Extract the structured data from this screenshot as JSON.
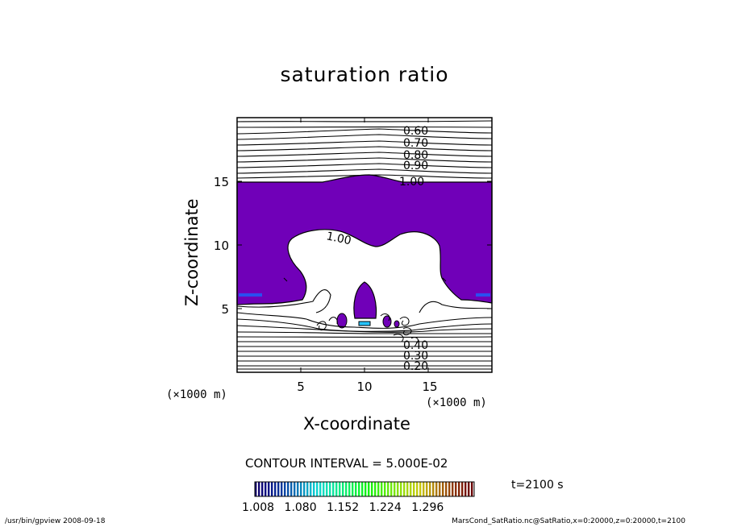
{
  "chart_data": {
    "type": "contour",
    "title": "saturation ratio",
    "xlabel": "X-coordinate",
    "ylabel": "Z-coordinate",
    "x_unit": "(×1000 m)",
    "z_unit": "(×1000 m)",
    "xlim": [
      0,
      20
    ],
    "ylim": [
      0,
      20
    ],
    "x_ticks": [
      "5",
      "10",
      "15"
    ],
    "y_ticks": [
      "5",
      "10",
      "15"
    ],
    "contour_labels_upper": [
      "0.60",
      "0.70",
      "0.80",
      "0.90",
      "1.00"
    ],
    "contour_label_center": "1.00",
    "contour_labels_lower": [
      "0.40",
      "0.30",
      "0.20"
    ],
    "contour_interval_text": "CONTOUR INTERVAL = 5.000E-02",
    "colorbar_ticks": [
      "1.008",
      "1.080",
      "1.152",
      "1.224",
      "1.296"
    ],
    "time_label": "t=2100 s",
    "fill_color": "#7000b8",
    "level_colors": [
      "#1b1b7a",
      "#2a4ff0",
      "#25c4ff"
    ]
  },
  "footer": {
    "left": "/usr/bin/gpview   2008-09-18",
    "right": "MarsCond_SatRatio.nc@SatRatio,x=0:20000,z=0:20000,t=2100"
  }
}
